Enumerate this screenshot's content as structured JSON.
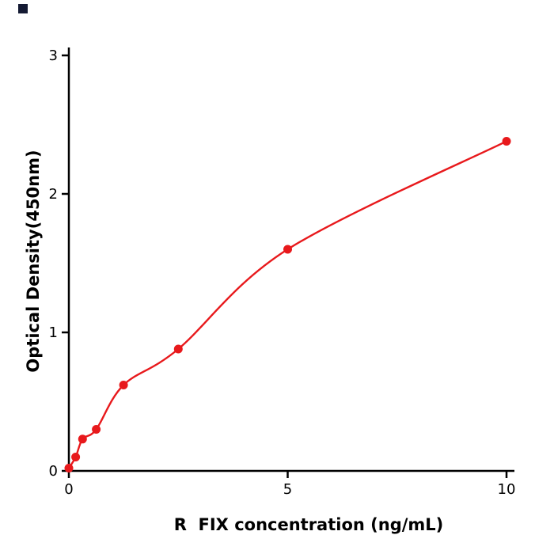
{
  "figure": {
    "background": "#ffffff",
    "corner_mark_color": "#141a33"
  },
  "chart_data": {
    "type": "scatter",
    "title": "",
    "xlabel": "R  FIX concentration (ng/mL)",
    "ylabel": "Optical Density(450nm)",
    "x": [
      0,
      0.156,
      0.313,
      0.625,
      1.25,
      2.5,
      5,
      10
    ],
    "y": [
      0.02,
      0.1,
      0.23,
      0.3,
      0.62,
      0.88,
      1.6,
      2.38
    ],
    "fit": "smooth monotonic curve through all points",
    "xlim": [
      0,
      10.3
    ],
    "ylim": [
      0,
      3
    ],
    "xticks": [
      0,
      5,
      10
    ],
    "yticks": [
      0,
      1,
      2,
      3
    ],
    "grid": false,
    "legend": "none",
    "point_color": "#e8191c",
    "line_color": "#e8191c",
    "axis_color": "#000000"
  }
}
